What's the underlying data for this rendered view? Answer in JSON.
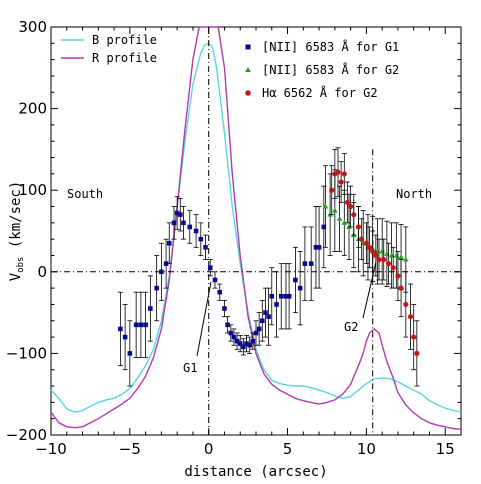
{
  "chart_data": {
    "type": "scatter",
    "xlabel": "distance (arcsec)",
    "ylabel_main": "V",
    "ylabel_sub": "obs",
    "ylabel_rest": " (km/sec)",
    "xlim": [
      -10,
      16
    ],
    "ylim": [
      -200,
      300
    ],
    "xticks": [
      -10,
      -5,
      0,
      5,
      10,
      15
    ],
    "yticks": [
      -200,
      -100,
      0,
      100,
      200,
      300
    ],
    "grid": false,
    "colors": {
      "b_profile": "#5ad6dc",
      "r_profile": "#b03ab0",
      "nii_g1": "#0a0a90",
      "nii_g2": "#22a622",
      "ha_g2": "#c01818",
      "errorbar": "#000000"
    },
    "annotations": {
      "south": "South",
      "north": "North",
      "g1": "G1",
      "g2": "G2"
    },
    "legend_left": [
      {
        "series": "b_profile",
        "label": "B profile"
      },
      {
        "series": "r_profile",
        "label": "R profile"
      }
    ],
    "legend_right": [
      {
        "series": "nii_g1",
        "label": "[NII] 6583 Å for G1"
      },
      {
        "series": "nii_g2",
        "label": "[NII] 6583 Å for G2"
      },
      {
        "series": "ha_g2",
        "label": "Hα 6562 Å for G2"
      }
    ],
    "lines": [
      {
        "id": "b_profile",
        "x": [
          -10,
          -9.5,
          -9,
          -8.5,
          -8,
          -7.5,
          -7,
          -6.5,
          -6,
          -5.5,
          -5,
          -4.5,
          -4,
          -3.5,
          -3,
          -2.5,
          -2,
          -1.5,
          -1,
          -0.5,
          -0.25,
          0,
          0.25,
          0.5,
          1,
          1.5,
          2,
          2.5,
          3,
          3.5,
          4,
          4.5,
          5,
          5.5,
          6,
          6.5,
          7,
          7.5,
          8,
          8.5,
          9,
          9.5,
          10,
          10.5,
          11,
          11.5,
          12,
          12.5,
          13,
          13.5,
          14,
          14.5,
          15,
          15.5,
          16
        ],
        "y": [
          -145,
          -155,
          -168,
          -172,
          -170,
          -165,
          -160,
          -157,
          -155,
          -150,
          -143,
          -130,
          -115,
          -95,
          -60,
          -5,
          80,
          160,
          230,
          268,
          278,
          280,
          275,
          250,
          170,
          80,
          10,
          -50,
          -95,
          -120,
          -133,
          -137,
          -139,
          -140,
          -140,
          -142,
          -145,
          -148,
          -152,
          -155,
          -153,
          -145,
          -137,
          -131,
          -130,
          -131,
          -135,
          -140,
          -145,
          -150,
          -158,
          -163,
          -167,
          -170,
          -172
        ]
      },
      {
        "id": "r_profile",
        "x": [
          -10,
          -9.5,
          -9,
          -8.5,
          -8,
          -7.5,
          -7,
          -6.5,
          -6,
          -5.5,
          -5,
          -4.5,
          -4,
          -3.5,
          -3,
          -2.5,
          -2,
          -1.5,
          -1,
          -0.6,
          -0.3,
          0,
          0.3,
          0.6,
          1,
          1.5,
          2,
          2.5,
          3,
          3.5,
          4,
          4.5,
          5,
          5.5,
          6,
          6.5,
          7,
          7.5,
          8,
          8.5,
          9,
          9.5,
          9.8,
          10,
          10.2,
          10.5,
          10.8,
          11,
          11.3,
          11.7,
          12,
          12.5,
          13,
          13.5,
          14,
          14.5,
          15,
          15.5,
          16
        ],
        "y": [
          -172,
          -185,
          -190,
          -191,
          -190,
          -185,
          -180,
          -174,
          -168,
          -162,
          -155,
          -143,
          -128,
          -105,
          -70,
          -10,
          80,
          175,
          260,
          300,
          300,
          300,
          300,
          300,
          250,
          120,
          20,
          -55,
          -100,
          -125,
          -138,
          -145,
          -150,
          -155,
          -158,
          -160,
          -162,
          -160,
          -157,
          -150,
          -138,
          -115,
          -100,
          -85,
          -75,
          -70,
          -75,
          -90,
          -110,
          -130,
          -148,
          -163,
          -173,
          -180,
          -185,
          -188,
          -190,
          -192,
          -193
        ]
      }
    ],
    "series": [
      {
        "id": "nii_g1",
        "marker": "square",
        "x": [
          -5.6,
          -5.3,
          -5.0,
          -4.6,
          -4.3,
          -4.0,
          -3.7,
          -3.3,
          -3.0,
          -2.7,
          -2.5,
          -2.2,
          -2.0,
          -1.8,
          -1.6,
          -1.2,
          -0.8,
          -0.5,
          -0.2,
          0.1,
          0.4,
          0.7,
          1.0,
          1.2,
          1.4,
          1.6,
          1.8,
          2.0,
          2.2,
          2.4,
          2.6,
          2.8,
          3.0,
          3.2,
          3.4,
          3.6,
          3.8,
          4.0,
          4.3,
          4.6,
          4.9,
          5.1,
          5.5,
          5.8,
          6.1,
          6.5,
          6.8,
          7.0,
          7.3
        ],
        "y": [
          -70,
          -80,
          -100,
          -65,
          -65,
          -65,
          -45,
          -20,
          0,
          10,
          35,
          60,
          72,
          70,
          60,
          55,
          50,
          40,
          30,
          5,
          -10,
          -25,
          -45,
          -65,
          -75,
          -80,
          -85,
          -88,
          -92,
          -88,
          -90,
          -85,
          -75,
          -70,
          -60,
          -50,
          -55,
          -30,
          -40,
          -30,
          -30,
          -30,
          -10,
          -20,
          10,
          10,
          30,
          30,
          55
        ],
        "err": [
          45,
          40,
          40,
          40,
          40,
          40,
          40,
          40,
          35,
          30,
          25,
          20,
          20,
          20,
          20,
          20,
          20,
          20,
          15,
          10,
          10,
          10,
          10,
          10,
          10,
          10,
          10,
          10,
          10,
          10,
          10,
          10,
          15,
          20,
          25,
          30,
          35,
          35,
          40,
          40,
          40,
          40,
          40,
          45,
          45,
          45,
          50,
          50,
          50
        ]
      },
      {
        "id": "nii_g2",
        "marker": "triangle",
        "x": [
          7.4,
          7.7,
          8.0,
          8.3,
          8.6,
          8.9,
          9.2,
          9.5,
          9.8,
          10.1,
          10.4,
          10.7,
          11.0,
          11.3,
          11.6,
          11.9,
          12.2,
          12.5
        ],
        "y": [
          80,
          70,
          75,
          65,
          60,
          55,
          45,
          40,
          35,
          30,
          28,
          25,
          25,
          22,
          20,
          20,
          18,
          15
        ],
        "err": [
          50,
          50,
          50,
          40,
          40,
          40,
          40,
          40,
          40,
          40,
          40,
          40,
          40,
          40,
          40,
          40,
          40,
          40
        ]
      },
      {
        "id": "ha_g2",
        "marker": "dot",
        "x": [
          7.8,
          8.0,
          8.2,
          8.4,
          8.6,
          8.8,
          9.0,
          9.2,
          9.5,
          9.7,
          10.0,
          10.2,
          10.4,
          10.6,
          10.8,
          11.1,
          11.4,
          11.7,
          12.0,
          12.2,
          12.5,
          12.8,
          13.0,
          13.2
        ],
        "y": [
          100,
          120,
          122,
          110,
          120,
          85,
          80,
          70,
          55,
          40,
          35,
          30,
          25,
          20,
          15,
          15,
          10,
          5,
          -5,
          -20,
          -40,
          -55,
          -80,
          -100
        ],
        "err": [
          30,
          30,
          30,
          25,
          25,
          25,
          25,
          25,
          25,
          25,
          25,
          25,
          25,
          25,
          25,
          25,
          25,
          25,
          30,
          35,
          40,
          40,
          40,
          40
        ]
      }
    ]
  }
}
